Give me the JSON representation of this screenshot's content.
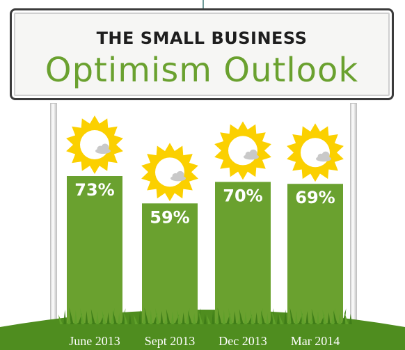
{
  "header": {
    "title": "THE SMALL BUSINESS",
    "subtitle": "Optimism Outlook"
  },
  "colors": {
    "bar": "#6aa12f",
    "sun": "#fbd000",
    "sun_ring": "#ffffff",
    "cloud": "#c9c9c9",
    "grass": "#4f8d1f",
    "label_text": "#1e1e1e"
  },
  "chart_data": {
    "type": "bar",
    "categories": [
      "June 2013",
      "Sept 2013",
      "Dec 2013",
      "Mar 2014"
    ],
    "values": [
      73,
      59,
      70,
      69
    ],
    "value_labels": [
      "73%",
      "59%",
      "70%",
      "69%"
    ],
    "title": "THE SMALL BUSINESS Optimism Outlook",
    "xlabel": "",
    "ylabel": "",
    "ylim": [
      0,
      100
    ],
    "grid": false,
    "legend": "none"
  }
}
